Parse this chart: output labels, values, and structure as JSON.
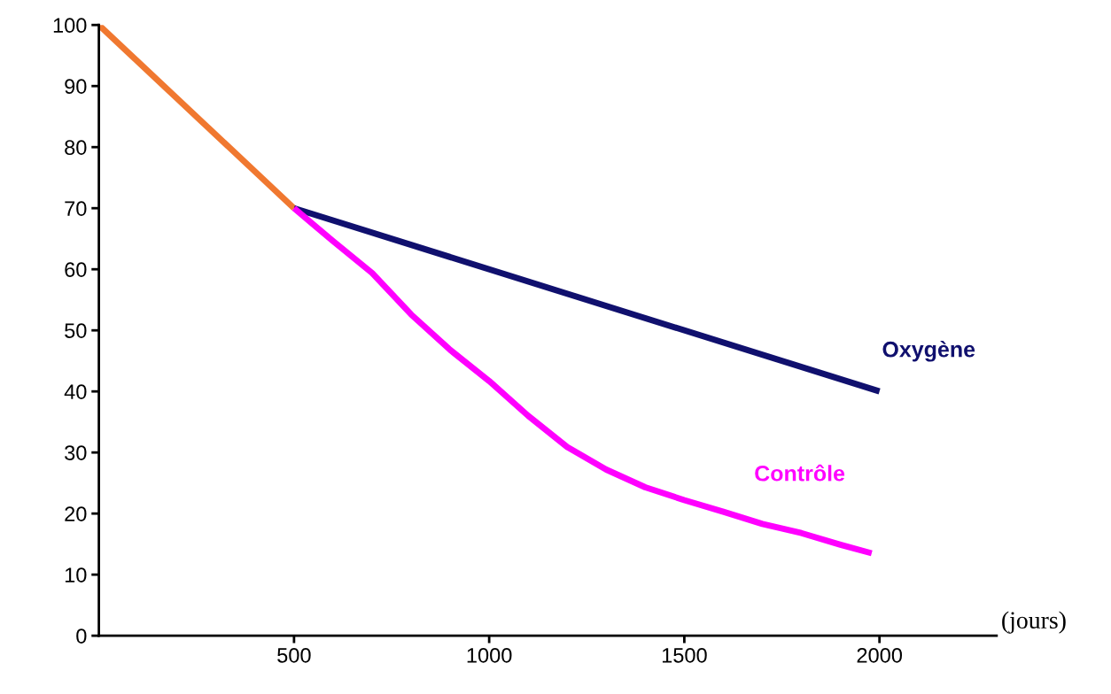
{
  "chart_data": {
    "type": "line",
    "xlabel": "(jours)",
    "xlim": [
      0,
      2300
    ],
    "ylim": [
      0,
      100
    ],
    "xticks": [
      500,
      1000,
      1500,
      2000
    ],
    "yticks": [
      0,
      10,
      20,
      30,
      40,
      50,
      60,
      70,
      80,
      90,
      100
    ],
    "grid": false,
    "legend": false,
    "marker": "none",
    "line_style": "solid",
    "series": [
      {
        "color": "#f07830",
        "x": [
          0,
          500
        ],
        "values": [
          100,
          70
        ]
      },
      {
        "name": "Oxygène",
        "color": "#10106e",
        "x": [
          500,
          2000
        ],
        "values": [
          70,
          40
        ]
      },
      {
        "name": "Contrôle",
        "color": "#ff00ff",
        "x": [
          500,
          600,
          700,
          800,
          900,
          1000,
          1100,
          1200,
          1300,
          1400,
          1500,
          1600,
          1700,
          1800,
          1900,
          1980
        ],
        "values": [
          70,
          64.6,
          59.4,
          52.6,
          46.8,
          41.7,
          36,
          30.9,
          27.2,
          24.3,
          22.2,
          20.3,
          18.3,
          16.8,
          14.9,
          13.5
        ]
      }
    ]
  }
}
